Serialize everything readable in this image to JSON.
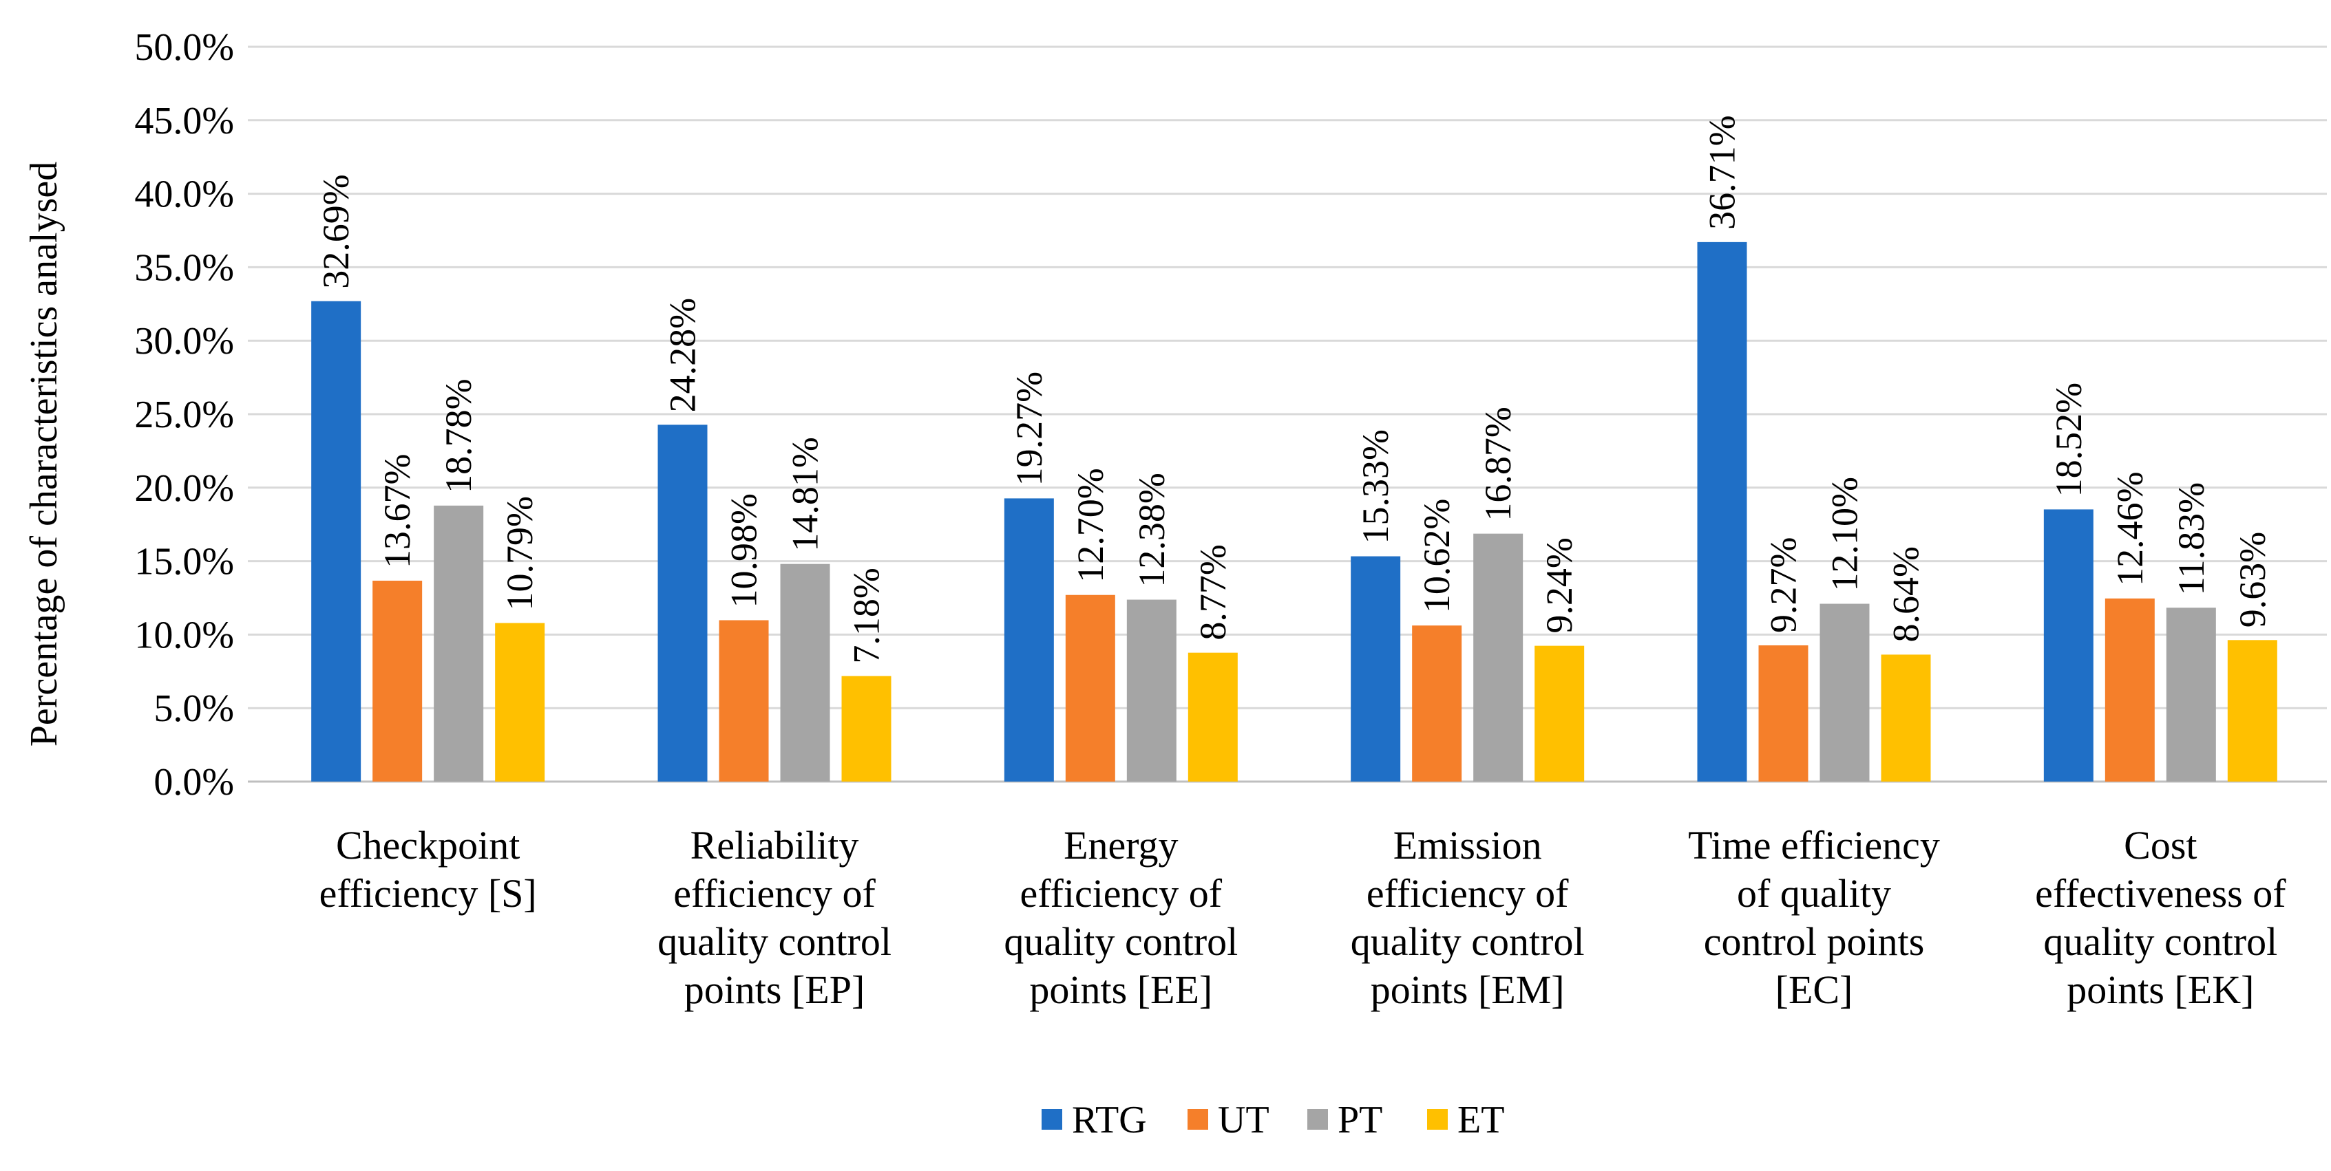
{
  "chart_data": {
    "type": "bar",
    "title": "",
    "xlabel": "",
    "ylabel": "Percentage of characteristics analysed",
    "ylim": [
      0,
      50
    ],
    "ytick_step": 5,
    "ytick_labels": [
      "0.0%",
      "5.0%",
      "10.0%",
      "15.0%",
      "20.0%",
      "25.0%",
      "30.0%",
      "35.0%",
      "40.0%",
      "45.0%",
      "50.0%"
    ],
    "grid": true,
    "legend_position": "bottom",
    "categories": [
      [
        "Checkpoint",
        "efficiency [S]"
      ],
      [
        "Reliability",
        "efficiency of",
        "quality control",
        "points [EP]"
      ],
      [
        "Energy",
        "efficiency of",
        "quality control",
        "points [EE]"
      ],
      [
        "Emission",
        "efficiency of",
        "quality control",
        "points [EM]"
      ],
      [
        "Time efficiency",
        "of quality",
        "control points",
        "[EC]"
      ],
      [
        "Cost",
        "effectiveness of",
        "quality control",
        "points [EK]"
      ]
    ],
    "series": [
      {
        "name": "RTG",
        "color": "#1F6FC6",
        "values": [
          32.69,
          24.28,
          19.27,
          15.33,
          36.71,
          18.52
        ],
        "labels": [
          "32.69%",
          "24.28%",
          "19.27%",
          "15.33%",
          "36.71%",
          "18.52%"
        ]
      },
      {
        "name": "UT",
        "color": "#F57F2A",
        "values": [
          13.67,
          10.98,
          12.7,
          10.62,
          9.27,
          12.46
        ],
        "labels": [
          "13.67%",
          "10.98%",
          "12.70%",
          "10.62%",
          "9.27%",
          "12.46%"
        ]
      },
      {
        "name": "PT",
        "color": "#A5A5A5",
        "values": [
          18.78,
          14.81,
          12.38,
          16.87,
          12.1,
          11.83
        ],
        "labels": [
          "18.78%",
          "14.81%",
          "12.38%",
          "16.87%",
          "12.10%",
          "11.83%"
        ]
      },
      {
        "name": "ET",
        "color": "#FFC000",
        "values": [
          10.79,
          7.18,
          8.77,
          9.24,
          8.64,
          9.63
        ],
        "labels": [
          "10.79%",
          "7.18%",
          "8.77%",
          "9.24%",
          "8.64%",
          "9.63%"
        ]
      }
    ]
  }
}
